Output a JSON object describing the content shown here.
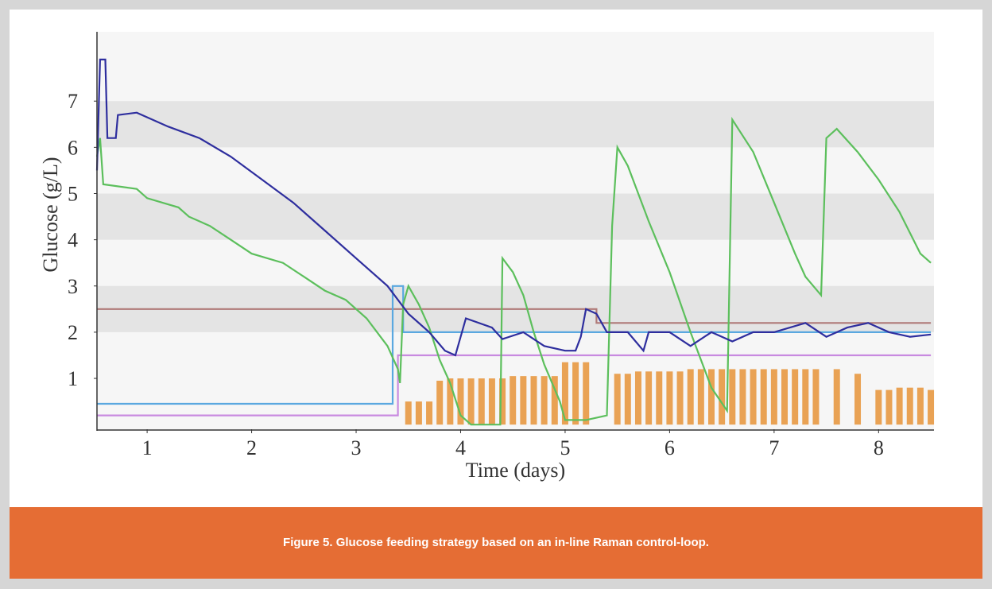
{
  "chart_data": {
    "type": "line",
    "xlabel": "Time (days)",
    "ylabel": "Glucose (g/L)",
    "xlim": [
      0.52,
      8.53
    ],
    "ylim": [
      -0.1,
      8.5
    ],
    "xticks": [
      1,
      2,
      3,
      4,
      5,
      6,
      7,
      8
    ],
    "yticks": [
      1,
      2,
      3,
      4,
      5,
      6,
      7
    ],
    "grid": "banded",
    "series": [
      {
        "type": "bar",
        "color": "#e9a254",
        "x": [
          3.5,
          3.6,
          3.7,
          3.8,
          3.9,
          4.0,
          4.1,
          4.2,
          4.3,
          4.4,
          4.5,
          4.6,
          4.7,
          4.8,
          4.9,
          5.0,
          5.1,
          5.2,
          5.3,
          5.4,
          5.5,
          5.6,
          5.7,
          5.8,
          5.9,
          6.0,
          6.1,
          6.2,
          6.3,
          6.4,
          6.5,
          6.6,
          6.7,
          6.8,
          6.9,
          7.0,
          7.1,
          7.2,
          7.3,
          7.4,
          7.5,
          7.6,
          7.7,
          7.8,
          7.9,
          8.0,
          8.1,
          8.2,
          8.3,
          8.4,
          8.5
        ],
        "values": [
          0.5,
          0.5,
          0.5,
          0.95,
          1.0,
          1.0,
          1.0,
          1.0,
          1.0,
          1.0,
          1.05,
          1.05,
          1.05,
          1.05,
          1.05,
          1.35,
          1.35,
          1.35,
          0,
          0,
          1.1,
          1.1,
          1.15,
          1.15,
          1.15,
          1.15,
          1.15,
          1.2,
          1.2,
          1.2,
          1.2,
          1.2,
          1.2,
          1.2,
          1.2,
          1.2,
          1.2,
          1.2,
          1.2,
          1.2,
          0,
          1.2,
          0,
          1.1,
          0,
          0.75,
          0.75,
          0.8,
          0.8,
          0.8,
          0.75
        ]
      },
      {
        "type": "line",
        "color": "#b07a78",
        "x": [
          0.52,
          5.3,
          5.3,
          8.5
        ],
        "values": [
          2.5,
          2.5,
          2.2,
          2.2
        ]
      },
      {
        "type": "line",
        "color": "#5aa8e0",
        "x": [
          0.52,
          3.35,
          3.35,
          3.45,
          3.45,
          8.5
        ],
        "values": [
          0.45,
          0.45,
          3.0,
          3.0,
          2.0,
          2.0
        ]
      },
      {
        "type": "line",
        "color": "#c88ae0",
        "x": [
          0.52,
          3.4,
          3.4,
          8.5
        ],
        "values": [
          0.2,
          0.2,
          1.5,
          1.5
        ]
      },
      {
        "type": "line",
        "color": "#5cbf5c",
        "x": [
          0.52,
          0.55,
          0.58,
          0.9,
          1.0,
          1.3,
          1.4,
          1.6,
          1.8,
          2.0,
          2.3,
          2.5,
          2.7,
          2.9,
          3.1,
          3.3,
          3.4,
          3.42,
          3.45,
          3.5,
          3.6,
          3.7,
          3.8,
          3.9,
          4.0,
          4.1,
          4.38,
          4.4,
          4.5,
          4.6,
          4.7,
          4.8,
          4.95,
          5.0,
          5.2,
          5.4,
          5.45,
          5.5,
          5.6,
          5.8,
          6.0,
          6.2,
          6.4,
          6.55,
          6.6,
          6.8,
          7.0,
          7.2,
          7.3,
          7.45,
          7.5,
          7.6,
          7.8,
          8.0,
          8.2,
          8.4,
          8.5
        ],
        "values": [
          5.8,
          6.2,
          5.2,
          5.1,
          4.9,
          4.7,
          4.5,
          4.3,
          4.0,
          3.7,
          3.5,
          3.2,
          2.9,
          2.7,
          2.3,
          1.7,
          1.2,
          0.9,
          2.6,
          3.0,
          2.6,
          2.1,
          1.4,
          0.9,
          0.2,
          0,
          0,
          3.6,
          3.3,
          2.8,
          2.0,
          1.3,
          0.5,
          0.1,
          0.1,
          0.2,
          4.3,
          6.0,
          5.6,
          4.4,
          3.3,
          2.0,
          0.8,
          0.3,
          6.6,
          5.9,
          4.8,
          3.7,
          3.2,
          2.8,
          6.2,
          6.4,
          5.9,
          5.3,
          4.6,
          3.7,
          3.5
        ]
      },
      {
        "type": "line",
        "color": "#2e2e9e",
        "x": [
          0.52,
          0.55,
          0.6,
          0.62,
          0.7,
          0.72,
          0.9,
          1.2,
          1.5,
          1.8,
          2.1,
          2.4,
          2.7,
          3.0,
          3.3,
          3.5,
          3.7,
          3.85,
          3.95,
          4.05,
          4.3,
          4.4,
          4.6,
          4.8,
          5.0,
          5.1,
          5.15,
          5.2,
          5.3,
          5.4,
          5.6,
          5.75,
          5.8,
          6.0,
          6.2,
          6.4,
          6.6,
          6.8,
          7.0,
          7.3,
          7.5,
          7.7,
          7.9,
          8.1,
          8.3,
          8.5
        ],
        "values": [
          5.5,
          7.9,
          7.9,
          6.2,
          6.2,
          6.7,
          6.75,
          6.45,
          6.2,
          5.8,
          5.3,
          4.8,
          4.2,
          3.6,
          3.0,
          2.4,
          2.0,
          1.6,
          1.5,
          2.3,
          2.1,
          1.85,
          2.0,
          1.7,
          1.6,
          1.6,
          1.9,
          2.5,
          2.4,
          2.0,
          2.0,
          1.6,
          2.0,
          2.0,
          1.7,
          2.0,
          1.8,
          2.0,
          2.0,
          2.2,
          1.9,
          2.1,
          2.2,
          2.0,
          1.9,
          1.95
        ]
      }
    ]
  },
  "caption": "Figure 5. Glucose feeding strategy based on an in-line Raman control-loop."
}
